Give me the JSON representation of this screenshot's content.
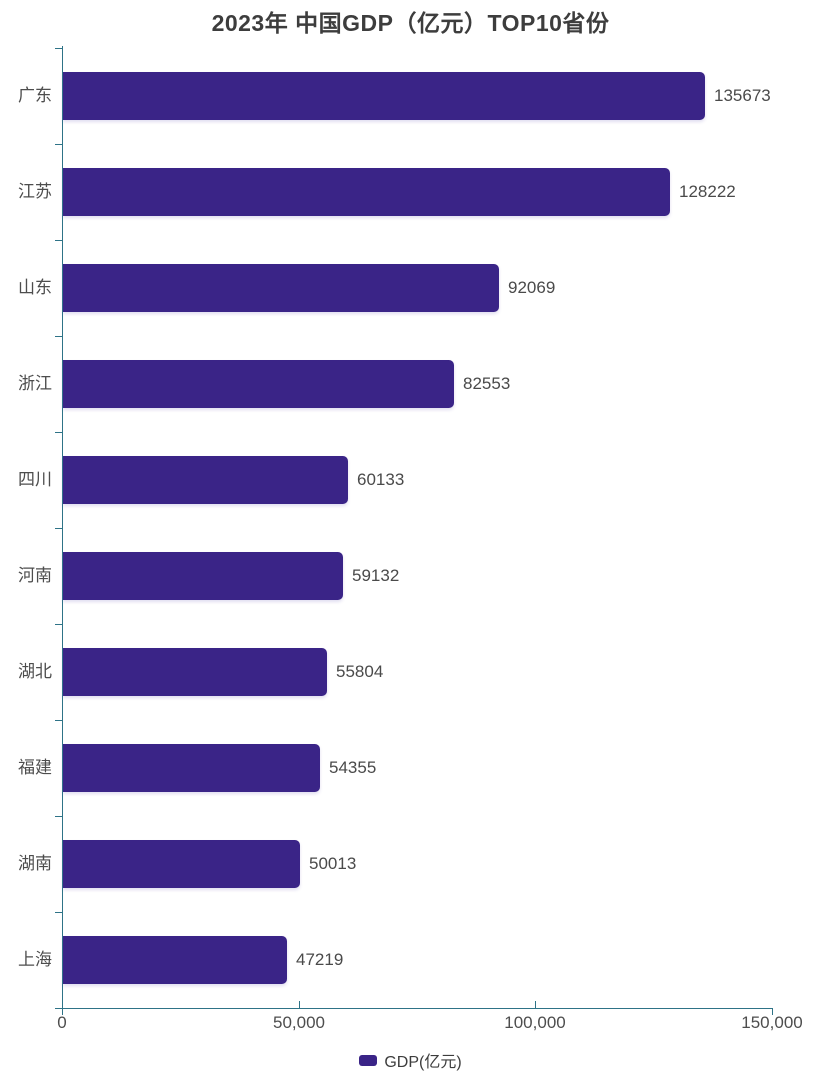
{
  "chart_data": {
    "type": "bar",
    "orientation": "horizontal",
    "title": "2023年 中国GDP（亿元）TOP10省份",
    "categories": [
      "广东",
      "江苏",
      "山东",
      "浙江",
      "四川",
      "河南",
      "湖北",
      "福建",
      "湖南",
      "上海"
    ],
    "values": [
      135673,
      128222,
      92069,
      82553,
      60133,
      59132,
      55804,
      54355,
      50013,
      47219
    ],
    "value_labels": [
      "135673",
      "128222",
      "92069",
      "82553",
      "60133",
      "59132",
      "55804",
      "54355",
      "50013",
      "47219"
    ],
    "series_name": "GDP(亿元)",
    "xlabel": "",
    "ylabel": "",
    "xlim": [
      0,
      150000
    ],
    "xticks": {
      "values": [
        0,
        50000,
        100000,
        150000
      ],
      "labels": [
        "0",
        "50,000",
        "100,000",
        "150,000"
      ]
    },
    "grid": false,
    "legend": {
      "label": "GDP(亿元)",
      "position": "bottom"
    },
    "colors": {
      "bar": "#3a2487",
      "axis": "#2e7387",
      "title_text": "#3d3d3d",
      "category_text": "#4d4d4d",
      "value_text": "#4a4a4a",
      "background": "#ffffff"
    }
  }
}
